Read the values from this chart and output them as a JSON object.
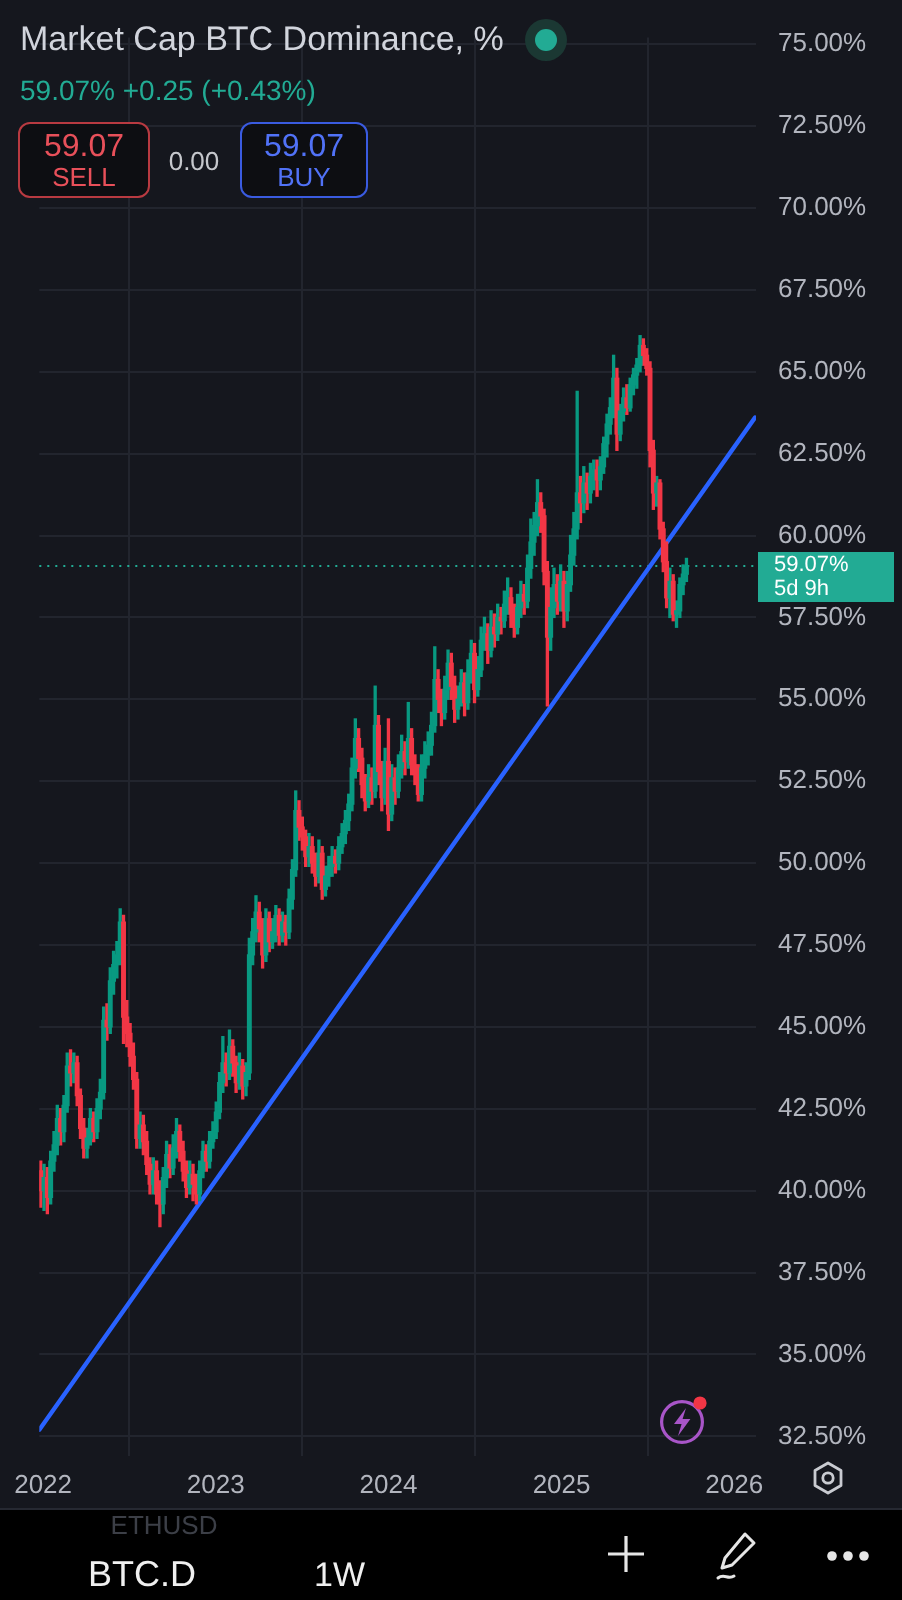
{
  "chart_data": {
    "type": "candlestick",
    "title": "Market Cap BTC Dominance, %",
    "subtitle": "59.07% +0.25 (+0.43%)",
    "x": [
      "2021-12-27",
      "2022-01-03",
      "2022-01-10",
      "2022-01-17",
      "2022-01-24",
      "2022-01-31",
      "2022-02-07",
      "2022-02-14",
      "2022-02-21",
      "2022-02-28",
      "2022-03-07",
      "2022-03-14",
      "2022-03-21",
      "2022-03-28",
      "2022-04-04",
      "2022-04-11",
      "2022-04-18",
      "2022-04-25",
      "2022-05-02",
      "2022-05-09",
      "2022-05-16",
      "2022-05-23",
      "2022-05-30",
      "2022-06-06",
      "2022-06-13",
      "2022-06-20",
      "2022-06-27",
      "2022-07-04",
      "2022-07-11",
      "2022-07-18",
      "2022-07-25",
      "2022-08-01",
      "2022-08-08",
      "2022-08-15",
      "2022-08-22",
      "2022-08-29",
      "2022-09-05",
      "2022-09-12",
      "2022-09-19",
      "2022-09-26",
      "2022-10-03",
      "2022-10-10",
      "2022-10-17",
      "2022-10-24",
      "2022-10-31",
      "2022-11-07",
      "2022-11-14",
      "2022-11-21",
      "2022-11-28",
      "2022-12-05",
      "2022-12-12",
      "2022-12-19",
      "2022-12-26",
      "2023-01-02",
      "2023-01-09",
      "2023-01-16",
      "2023-01-23",
      "2023-01-30",
      "2023-02-06",
      "2023-02-13",
      "2023-02-20",
      "2023-02-27",
      "2023-03-06",
      "2023-03-13",
      "2023-03-20",
      "2023-03-27",
      "2023-04-03",
      "2023-04-10",
      "2023-04-17",
      "2023-04-24",
      "2023-05-01",
      "2023-05-08",
      "2023-05-15",
      "2023-05-22",
      "2023-05-29",
      "2023-06-05",
      "2023-06-12",
      "2023-06-19",
      "2023-06-26",
      "2023-07-03",
      "2023-07-10",
      "2023-07-17",
      "2023-07-24",
      "2023-07-31",
      "2023-08-07",
      "2023-08-14",
      "2023-08-21",
      "2023-08-28",
      "2023-09-04",
      "2023-09-11",
      "2023-09-18",
      "2023-09-25",
      "2023-10-02",
      "2023-10-09",
      "2023-10-16",
      "2023-10-23",
      "2023-10-30",
      "2023-11-06",
      "2023-11-13",
      "2023-11-20",
      "2023-11-27",
      "2023-12-04",
      "2023-12-11",
      "2023-12-18",
      "2023-12-25",
      "2024-01-01",
      "2024-01-08",
      "2024-01-15",
      "2024-01-22",
      "2024-01-29",
      "2024-02-05",
      "2024-02-12",
      "2024-02-19",
      "2024-02-26",
      "2024-03-04",
      "2024-03-11",
      "2024-03-18",
      "2024-03-25",
      "2024-04-01",
      "2024-04-08",
      "2024-04-15",
      "2024-04-22",
      "2024-04-29",
      "2024-05-06",
      "2024-05-13",
      "2024-05-20",
      "2024-05-27",
      "2024-06-03",
      "2024-06-10",
      "2024-06-17",
      "2024-06-24",
      "2024-07-01",
      "2024-07-08",
      "2024-07-15",
      "2024-07-22",
      "2024-07-29",
      "2024-08-05",
      "2024-08-12",
      "2024-08-19",
      "2024-08-26",
      "2024-09-02",
      "2024-09-09",
      "2024-09-16",
      "2024-09-23",
      "2024-09-30",
      "2024-10-07",
      "2024-10-14",
      "2024-10-21",
      "2024-10-28",
      "2024-11-04",
      "2024-11-11",
      "2024-11-18",
      "2024-11-25",
      "2024-12-02",
      "2024-12-09",
      "2024-12-16",
      "2024-12-23",
      "2024-12-30",
      "2025-01-06",
      "2025-01-13",
      "2025-01-20",
      "2025-01-27",
      "2025-02-03",
      "2025-02-10",
      "2025-02-17",
      "2025-02-24",
      "2025-03-03",
      "2025-03-10",
      "2025-03-17",
      "2025-03-24",
      "2025-03-31",
      "2025-04-07",
      "2025-04-14",
      "2025-04-21",
      "2025-04-28",
      "2025-05-05",
      "2025-05-12",
      "2025-05-19",
      "2025-05-26",
      "2025-06-02",
      "2025-06-09",
      "2025-06-16",
      "2025-06-23",
      "2025-06-30",
      "2025-07-07",
      "2025-07-14",
      "2025-07-21",
      "2025-07-28",
      "2025-08-04",
      "2025-08-11",
      "2025-08-18",
      "2025-08-25",
      "2025-09-01",
      "2025-09-08",
      "2025-09-15",
      "2025-09-22"
    ],
    "ohlc": [
      [
        40.6,
        40.9,
        39.5,
        40.0
      ],
      [
        40.0,
        40.8,
        39.4,
        40.4
      ],
      [
        40.4,
        40.7,
        39.3,
        39.8
      ],
      [
        39.8,
        41.2,
        39.6,
        40.9
      ],
      [
        40.9,
        41.8,
        40.6,
        41.4
      ],
      [
        41.4,
        42.6,
        41.1,
        42.2
      ],
      [
        42.2,
        42.5,
        41.4,
        41.8
      ],
      [
        41.8,
        42.9,
        41.5,
        42.6
      ],
      [
        42.6,
        44.2,
        42.4,
        43.8
      ],
      [
        43.8,
        44.3,
        43.2,
        43.6
      ],
      [
        43.6,
        44.2,
        43.3,
        43.9
      ],
      [
        43.9,
        44.1,
        42.6,
        42.9
      ],
      [
        42.9,
        43.1,
        41.6,
        41.9
      ],
      [
        41.9,
        42.2,
        41.0,
        41.3
      ],
      [
        41.3,
        41.9,
        41.0,
        41.6
      ],
      [
        41.6,
        42.5,
        41.4,
        42.2
      ],
      [
        42.2,
        42.4,
        41.5,
        41.8
      ],
      [
        41.8,
        42.8,
        41.6,
        42.5
      ],
      [
        42.5,
        43.4,
        42.2,
        43.0
      ],
      [
        43.0,
        45.6,
        42.8,
        45.2
      ],
      [
        45.2,
        45.7,
        44.6,
        45.0
      ],
      [
        45.0,
        46.8,
        44.8,
        46.4
      ],
      [
        46.4,
        47.3,
        46.0,
        46.9
      ],
      [
        46.9,
        47.6,
        46.5,
        47.2
      ],
      [
        47.2,
        48.6,
        46.9,
        48.2
      ],
      [
        48.2,
        48.4,
        44.5,
        45.3
      ],
      [
        45.3,
        45.8,
        44.4,
        44.8
      ],
      [
        44.8,
        45.1,
        43.8,
        44.1
      ],
      [
        44.1,
        44.5,
        43.1,
        43.4
      ],
      [
        43.4,
        43.6,
        41.3,
        41.6
      ],
      [
        41.6,
        42.4,
        41.3,
        42.0
      ],
      [
        42.0,
        42.3,
        41.1,
        41.5
      ],
      [
        41.5,
        41.8,
        40.5,
        40.8
      ],
      [
        40.8,
        41.0,
        39.9,
        40.2
      ],
      [
        40.2,
        41.0,
        39.9,
        40.6
      ],
      [
        40.6,
        40.9,
        39.6,
        39.9
      ],
      [
        39.9,
        40.3,
        38.9,
        39.6
      ],
      [
        39.6,
        40.7,
        39.3,
        40.4
      ],
      [
        40.4,
        41.5,
        40.1,
        41.1
      ],
      [
        41.1,
        41.4,
        40.4,
        40.7
      ],
      [
        40.7,
        41.7,
        40.5,
        41.3
      ],
      [
        41.3,
        42.2,
        41.0,
        41.8
      ],
      [
        41.8,
        42.0,
        40.9,
        41.2
      ],
      [
        41.2,
        41.5,
        40.3,
        40.6
      ],
      [
        40.6,
        40.9,
        39.8,
        40.1
      ],
      [
        40.1,
        40.9,
        39.9,
        40.5
      ],
      [
        40.5,
        40.8,
        39.7,
        40.2
      ],
      [
        40.2,
        40.5,
        39.6,
        39.9
      ],
      [
        39.9,
        40.9,
        39.7,
        40.6
      ],
      [
        40.6,
        41.5,
        40.4,
        41.2
      ],
      [
        41.2,
        41.4,
        40.6,
        40.9
      ],
      [
        40.9,
        41.8,
        40.7,
        41.5
      ],
      [
        41.5,
        42.1,
        41.3,
        41.8
      ],
      [
        41.8,
        42.7,
        41.6,
        42.4
      ],
      [
        42.4,
        43.6,
        42.2,
        43.3
      ],
      [
        43.3,
        44.7,
        43.0,
        43.9
      ],
      [
        43.9,
        44.2,
        43.2,
        43.6
      ],
      [
        43.6,
        44.9,
        43.4,
        44.4
      ],
      [
        44.4,
        44.6,
        43.5,
        43.9
      ],
      [
        43.9,
        44.1,
        43.0,
        43.3
      ],
      [
        43.3,
        44.2,
        43.1,
        43.8
      ],
      [
        43.8,
        44.0,
        42.8,
        43.2
      ],
      [
        43.2,
        43.9,
        42.9,
        43.6
      ],
      [
        43.6,
        47.7,
        43.4,
        47.2
      ],
      [
        47.2,
        48.3,
        46.9,
        47.9
      ],
      [
        47.9,
        49.0,
        47.6,
        48.5
      ],
      [
        48.5,
        48.8,
        47.6,
        48.0
      ],
      [
        48.0,
        48.3,
        46.8,
        47.2
      ],
      [
        47.2,
        48.6,
        47.0,
        48.3
      ],
      [
        48.3,
        48.5,
        47.3,
        47.6
      ],
      [
        47.6,
        48.3,
        47.4,
        47.9
      ],
      [
        47.9,
        48.7,
        47.6,
        48.4
      ],
      [
        48.4,
        48.6,
        47.5,
        47.8
      ],
      [
        47.8,
        48.5,
        47.6,
        48.2
      ],
      [
        48.2,
        48.4,
        47.5,
        47.9
      ],
      [
        47.9,
        49.2,
        47.7,
        48.9
      ],
      [
        48.9,
        50.1,
        48.6,
        49.8
      ],
      [
        49.8,
        52.2,
        49.6,
        51.6
      ],
      [
        51.6,
        51.9,
        50.7,
        51.1
      ],
      [
        51.1,
        51.4,
        50.4,
        50.8
      ],
      [
        50.8,
        51.0,
        49.9,
        50.2
      ],
      [
        50.2,
        50.9,
        49.9,
        50.5
      ],
      [
        50.5,
        50.8,
        49.7,
        50.0
      ],
      [
        50.0,
        50.3,
        49.3,
        49.6
      ],
      [
        49.6,
        50.7,
        49.4,
        50.3
      ],
      [
        50.3,
        50.5,
        48.9,
        49.2
      ],
      [
        49.2,
        49.9,
        49.0,
        49.6
      ],
      [
        49.6,
        50.2,
        49.3,
        49.9
      ],
      [
        49.9,
        50.5,
        49.6,
        50.2
      ],
      [
        50.2,
        50.4,
        49.7,
        50.0
      ],
      [
        50.0,
        50.8,
        49.8,
        50.5
      ],
      [
        50.5,
        51.2,
        50.3,
        50.9
      ],
      [
        50.9,
        51.6,
        50.6,
        51.3
      ],
      [
        51.3,
        52.1,
        51.0,
        51.8
      ],
      [
        51.8,
        53.2,
        51.6,
        52.9
      ],
      [
        52.9,
        54.4,
        52.6,
        53.8
      ],
      [
        53.8,
        54.1,
        52.8,
        53.2
      ],
      [
        53.2,
        53.5,
        52.0,
        52.4
      ],
      [
        52.4,
        52.7,
        51.6,
        51.9
      ],
      [
        51.9,
        53.0,
        51.7,
        52.6
      ],
      [
        52.6,
        52.9,
        51.8,
        52.2
      ],
      [
        52.2,
        55.4,
        52.0,
        54.2
      ],
      [
        54.2,
        54.5,
        52.4,
        52.8
      ],
      [
        52.8,
        53.1,
        51.6,
        52.0
      ],
      [
        52.0,
        53.5,
        51.8,
        53.1
      ],
      [
        53.1,
        54.4,
        51.0,
        51.5
      ],
      [
        51.5,
        53.0,
        51.3,
        52.6
      ],
      [
        52.6,
        52.9,
        51.8,
        52.2
      ],
      [
        52.2,
        53.3,
        52.0,
        52.9
      ],
      [
        52.9,
        53.9,
        52.6,
        53.4
      ],
      [
        53.4,
        53.7,
        52.7,
        53.1
      ],
      [
        53.1,
        54.9,
        52.9,
        53.8
      ],
      [
        53.8,
        54.1,
        52.7,
        53.0
      ],
      [
        53.0,
        53.3,
        52.4,
        52.7
      ],
      [
        52.7,
        53.0,
        51.9,
        52.1
      ],
      [
        52.1,
        53.3,
        51.9,
        52.9
      ],
      [
        52.9,
        53.7,
        52.6,
        53.3
      ],
      [
        53.3,
        54.0,
        53.0,
        53.6
      ],
      [
        53.6,
        54.6,
        53.3,
        54.2
      ],
      [
        54.2,
        56.6,
        54.0,
        55.6
      ],
      [
        55.6,
        55.9,
        54.6,
        55.0
      ],
      [
        55.0,
        55.3,
        54.2,
        54.6
      ],
      [
        54.6,
        55.7,
        54.4,
        55.3
      ],
      [
        55.3,
        56.5,
        55.0,
        56.1
      ],
      [
        56.1,
        56.4,
        55.0,
        55.4
      ],
      [
        55.4,
        55.7,
        54.3,
        54.7
      ],
      [
        54.7,
        55.4,
        54.4,
        55.0
      ],
      [
        55.0,
        55.9,
        54.8,
        55.5
      ],
      [
        55.5,
        55.8,
        54.5,
        54.9
      ],
      [
        54.9,
        56.2,
        54.7,
        55.8
      ],
      [
        55.8,
        56.8,
        55.5,
        56.4
      ],
      [
        56.4,
        56.7,
        54.9,
        55.3
      ],
      [
        55.3,
        56.3,
        55.1,
        55.9
      ],
      [
        55.9,
        57.2,
        55.7,
        56.8
      ],
      [
        56.8,
        57.5,
        56.5,
        57.0
      ],
      [
        57.0,
        57.3,
        56.1,
        56.5
      ],
      [
        56.5,
        57.7,
        56.3,
        57.2
      ],
      [
        57.2,
        57.6,
        56.6,
        57.0
      ],
      [
        57.0,
        57.9,
        56.8,
        57.5
      ],
      [
        57.5,
        57.8,
        57.0,
        57.4
      ],
      [
        57.4,
        58.3,
        57.2,
        57.9
      ],
      [
        57.9,
        58.7,
        57.6,
        58.1
      ],
      [
        58.1,
        58.4,
        57.2,
        57.6
      ],
      [
        57.6,
        57.9,
        56.9,
        57.2
      ],
      [
        57.2,
        58.2,
        57.0,
        57.8
      ],
      [
        57.8,
        58.6,
        57.5,
        58.2
      ],
      [
        58.2,
        58.5,
        57.6,
        58.0
      ],
      [
        58.0,
        59.4,
        57.8,
        59.0
      ],
      [
        59.0,
        60.5,
        58.7,
        59.8
      ],
      [
        59.8,
        60.7,
        59.4,
        60.3
      ],
      [
        60.3,
        61.7,
        60.0,
        61.0
      ],
      [
        61.0,
        61.3,
        60.1,
        60.6
      ],
      [
        60.6,
        60.8,
        58.5,
        58.9
      ],
      [
        58.9,
        59.2,
        54.8,
        56.9
      ],
      [
        56.9,
        58.4,
        56.5,
        57.8
      ],
      [
        57.8,
        59.0,
        57.5,
        58.5
      ],
      [
        58.5,
        58.8,
        57.6,
        58.0
      ],
      [
        58.0,
        59.1,
        57.7,
        58.6
      ],
      [
        58.6,
        58.9,
        57.2,
        57.7
      ],
      [
        57.7,
        58.9,
        57.4,
        58.5
      ],
      [
        58.5,
        60.0,
        58.3,
        59.4
      ],
      [
        59.4,
        60.7,
        59.1,
        60.2
      ],
      [
        60.2,
        64.4,
        59.9,
        61.3
      ],
      [
        61.3,
        61.8,
        60.4,
        61.0
      ],
      [
        61.0,
        62.1,
        60.7,
        61.6
      ],
      [
        61.6,
        61.9,
        60.8,
        61.3
      ],
      [
        61.3,
        62.2,
        61.0,
        61.8
      ],
      [
        61.8,
        62.3,
        61.4,
        62.0
      ],
      [
        62.0,
        62.3,
        61.2,
        61.7
      ],
      [
        61.7,
        62.4,
        61.4,
        62.1
      ],
      [
        62.1,
        63.0,
        61.9,
        62.8
      ],
      [
        62.8,
        63.7,
        62.4,
        63.4
      ],
      [
        63.4,
        64.2,
        63.1,
        63.9
      ],
      [
        63.9,
        65.5,
        63.6,
        64.8
      ],
      [
        64.8,
        65.1,
        62.6,
        63.1
      ],
      [
        63.1,
        64.0,
        62.9,
        63.8
      ],
      [
        63.8,
        64.5,
        63.5,
        64.2
      ],
      [
        64.2,
        64.6,
        63.7,
        63.9
      ],
      [
        63.9,
        64.8,
        63.8,
        64.6
      ],
      [
        64.6,
        65.1,
        64.3,
        64.9
      ],
      [
        64.9,
        65.4,
        64.5,
        65.2
      ],
      [
        65.2,
        66.1,
        65.0,
        65.8
      ],
      [
        65.8,
        66.0,
        65.2,
        65.5
      ],
      [
        65.5,
        65.7,
        64.9,
        65.1
      ],
      [
        65.1,
        65.3,
        62.1,
        62.6
      ],
      [
        62.6,
        62.9,
        60.8,
        61.3
      ],
      [
        61.3,
        61.8,
        60.9,
        61.6
      ],
      [
        61.6,
        61.7,
        59.9,
        60.2
      ],
      [
        60.2,
        60.4,
        58.9,
        59.2
      ],
      [
        59.2,
        59.8,
        57.8,
        58.1
      ],
      [
        58.1,
        59.0,
        57.5,
        58.6
      ],
      [
        58.6,
        58.8,
        57.4,
        57.6
      ],
      [
        57.6,
        58.0,
        57.2,
        57.7
      ],
      [
        57.7,
        58.7,
        57.5,
        58.5
      ],
      [
        58.5,
        59.1,
        58.2,
        58.82
      ],
      [
        58.82,
        59.3,
        58.6,
        59.07
      ]
    ],
    "colors": [
      "#f23645",
      "#089981",
      "#f23645",
      "#089981",
      "#089981",
      "#089981",
      "#f23645",
      "#089981",
      "#089981",
      "#f23645",
      "#089981",
      "#f23645",
      "#f23645",
      "#f23645",
      "#089981",
      "#089981",
      "#f23645",
      "#089981",
      "#089981",
      "#089981",
      "#f23645",
      "#089981",
      "#089981",
      "#089981",
      "#089981",
      "#f23645",
      "#f23645",
      "#f23645",
      "#f23645",
      "#f23645",
      "#089981",
      "#f23645",
      "#f23645",
      "#f23645",
      "#089981",
      "#f23645",
      "#f23645",
      "#089981",
      "#089981",
      "#f23645",
      "#089981",
      "#089981",
      "#f23645",
      "#f23645",
      "#f23645",
      "#089981",
      "#f23645",
      "#f23645",
      "#089981",
      "#089981",
      "#f23645",
      "#089981",
      "#089981",
      "#089981",
      "#089981",
      "#089981",
      "#f23645",
      "#089981",
      "#f23645",
      "#f23645",
      "#089981",
      "#f23645",
      "#089981",
      "#089981",
      "#089981",
      "#089981",
      "#f23645",
      "#f23645",
      "#089981",
      "#f23645",
      "#089981",
      "#089981",
      "#f23645",
      "#089981",
      "#f23645",
      "#089981",
      "#089981",
      "#089981",
      "#f23645",
      "#f23645",
      "#f23645",
      "#089981",
      "#f23645",
      "#f23645",
      "#089981",
      "#f23645",
      "#089981",
      "#089981",
      "#089981",
      "#f23645",
      "#089981",
      "#089981",
      "#089981",
      "#089981",
      "#089981",
      "#089981",
      "#f23645",
      "#f23645",
      "#f23645",
      "#089981",
      "#f23645",
      "#089981",
      "#f23645",
      "#f23645",
      "#089981",
      "#f23645",
      "#089981",
      "#f23645",
      "#089981",
      "#089981",
      "#f23645",
      "#089981",
      "#f23645",
      "#f23645",
      "#f23645",
      "#089981",
      "#089981",
      "#089981",
      "#089981",
      "#089981",
      "#f23645",
      "#f23645",
      "#089981",
      "#089981",
      "#f23645",
      "#f23645",
      "#089981",
      "#089981",
      "#f23645",
      "#089981",
      "#089981",
      "#f23645",
      "#089981",
      "#089981",
      "#089981",
      "#f23645",
      "#089981",
      "#f23645",
      "#089981",
      "#f23645",
      "#089981",
      "#089981",
      "#f23645",
      "#f23645",
      "#089981",
      "#089981",
      "#f23645",
      "#089981",
      "#089981",
      "#089981",
      "#089981",
      "#f23645",
      "#f23645",
      "#f23645",
      "#089981",
      "#089981",
      "#f23645",
      "#089981",
      "#f23645",
      "#089981",
      "#089981",
      "#089981",
      "#089981",
      "#f23645",
      "#089981",
      "#f23645",
      "#089981",
      "#089981",
      "#f23645",
      "#089981",
      "#089981",
      "#089981",
      "#089981",
      "#089981",
      "#f23645",
      "#089981",
      "#089981",
      "#f23645",
      "#089981",
      "#089981",
      "#089981",
      "#089981",
      "#f23645",
      "#f23645",
      "#f23645",
      "#f23645",
      "#089981",
      "#f23645",
      "#f23645",
      "#f23645",
      "#089981",
      "#f23645",
      "#089981",
      "#089981",
      "#089981",
      "#089981"
    ],
    "series": [
      {
        "type": "line",
        "x": [
          "2021-12-24",
          "2026-02-14"
        ],
        "values": [
          32.7,
          63.6
        ],
        "color": "#2962ff",
        "marker": "none",
        "line_style": "solid"
      }
    ],
    "xlim": [
      "2021-12-24",
      "2026-02-16"
    ],
    "xticks": [
      "2022",
      "2023",
      "2024",
      "2025",
      "2026"
    ],
    "ylim": [
      31.9,
      75.2
    ],
    "yticks": [
      {
        "value": 32.5,
        "label": "32.50%"
      },
      {
        "value": 35,
        "label": "35.00%"
      },
      {
        "value": 37.5,
        "label": "37.50%"
      },
      {
        "value": 40,
        "label": "40.00%"
      },
      {
        "value": 42.5,
        "label": "42.50%"
      },
      {
        "value": 45,
        "label": "45.00%"
      },
      {
        "value": 47.5,
        "label": "47.50%"
      },
      {
        "value": 50,
        "label": "50.00%"
      },
      {
        "value": 52.5,
        "label": "52.50%"
      },
      {
        "value": 55,
        "label": "55.00%"
      },
      {
        "value": 57.5,
        "label": "57.50%"
      },
      {
        "value": 60,
        "label": "60.00%"
      },
      {
        "value": 62.5,
        "label": "62.50%"
      },
      {
        "value": 65,
        "label": "65.00%"
      },
      {
        "value": 67.5,
        "label": "67.50%"
      },
      {
        "value": 70,
        "label": "70.00%"
      },
      {
        "value": 72.5,
        "label": "72.50%"
      },
      {
        "value": 75,
        "label": "75.00%"
      }
    ],
    "grid": true,
    "ref_lines": [
      {
        "axis": "y",
        "value": 59.07,
        "label": "59.07%",
        "color": "#22ab94",
        "line_style": "dotted"
      }
    ],
    "annotations": [
      "59.07",
      "SELL",
      "0.00",
      "59.07",
      "BUY",
      "5d 9h",
      "ETHUSD",
      "BTC.D",
      "1W"
    ]
  }
}
